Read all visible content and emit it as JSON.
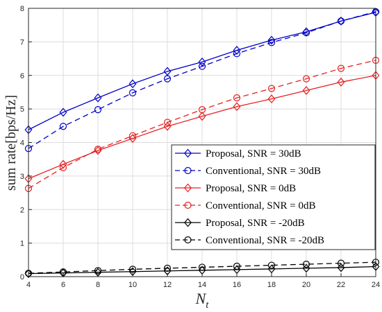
{
  "chart_data": {
    "type": "line",
    "xlabel": "N",
    "xlabel_sub": "t",
    "ylabel": "sum rate[bps/Hz]",
    "xlim": [
      4,
      24
    ],
    "ylim": [
      0,
      8
    ],
    "xticks": [
      4,
      6,
      8,
      10,
      12,
      14,
      16,
      18,
      20,
      22,
      24
    ],
    "yticks": [
      0,
      1,
      2,
      3,
      4,
      5,
      6,
      7,
      8
    ],
    "grid": true,
    "legend_position": "bottom-right",
    "x": [
      4,
      6,
      8,
      10,
      12,
      14,
      16,
      18,
      20,
      22,
      24
    ],
    "series": [
      {
        "name": "Proposal, SNR = 30dB",
        "color": "#0000c8",
        "dash": "solid",
        "marker": "diamond",
        "values": [
          4.38,
          4.9,
          5.33,
          5.75,
          6.12,
          6.4,
          6.75,
          7.05,
          7.3,
          7.62,
          7.88
        ]
      },
      {
        "name": "Conventional, SNR = 30dB",
        "color": "#0000c8",
        "dash": "dashed",
        "marker": "circle",
        "values": [
          3.82,
          4.48,
          4.98,
          5.48,
          5.9,
          6.27,
          6.65,
          6.98,
          7.27,
          7.62,
          7.9
        ]
      },
      {
        "name": "Proposal, SNR = 0dB",
        "color": "#e52020",
        "dash": "solid",
        "marker": "diamond",
        "values": [
          2.92,
          3.35,
          3.76,
          4.12,
          4.48,
          4.78,
          5.07,
          5.3,
          5.55,
          5.8,
          6.0
        ]
      },
      {
        "name": "Conventional, SNR = 0dB",
        "color": "#e52020",
        "dash": "dashed",
        "marker": "circle",
        "values": [
          2.63,
          3.25,
          3.8,
          4.2,
          4.6,
          4.98,
          5.33,
          5.61,
          5.9,
          6.21,
          6.45
        ]
      },
      {
        "name": "Proposal, SNR = -20dB",
        "color": "#000000",
        "dash": "solid",
        "marker": "diamond",
        "values": [
          0.09,
          0.11,
          0.13,
          0.15,
          0.17,
          0.19,
          0.21,
          0.23,
          0.25,
          0.27,
          0.3
        ]
      },
      {
        "name": "Conventional, SNR = -20dB",
        "color": "#000000",
        "dash": "dashed",
        "marker": "circle",
        "values": [
          0.1,
          0.14,
          0.18,
          0.22,
          0.25,
          0.28,
          0.31,
          0.34,
          0.37,
          0.4,
          0.43
        ]
      }
    ]
  }
}
